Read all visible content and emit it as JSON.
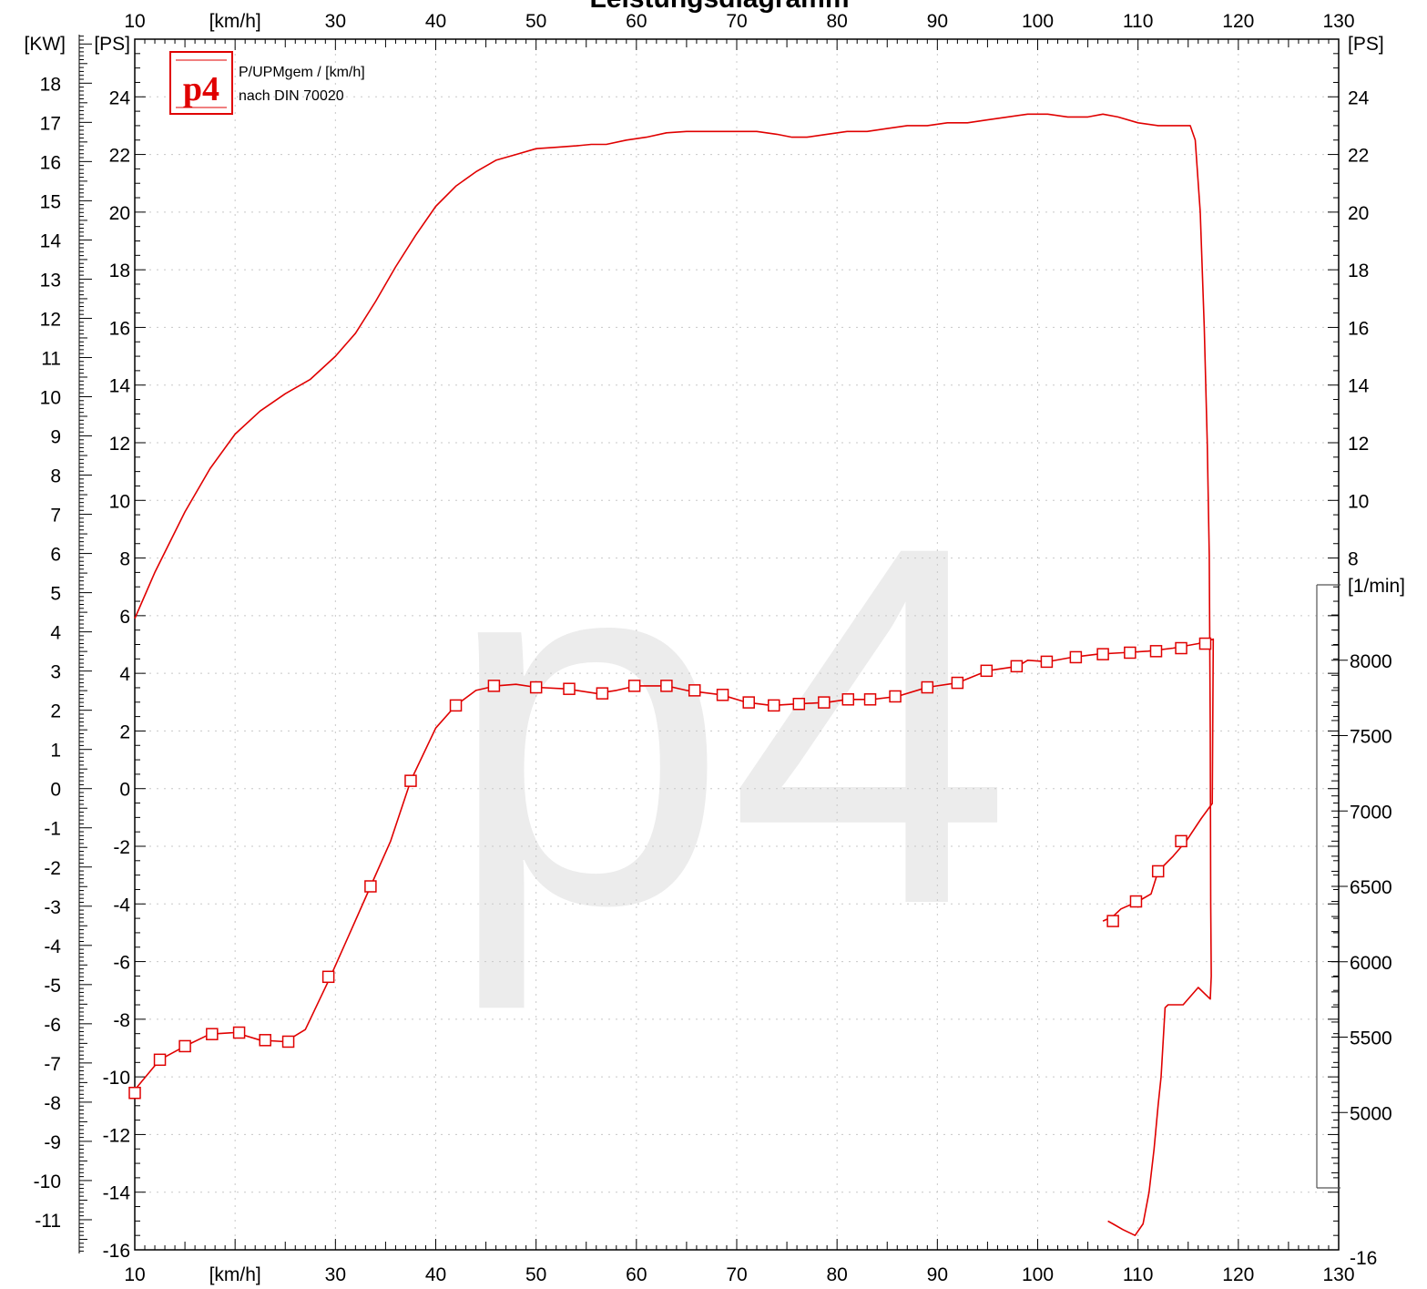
{
  "title": "Leistungsdiagramm",
  "watermark": "p4",
  "legend": {
    "logo": "p4",
    "line1": "P/UPMgem / [km/h]",
    "line2": "nach DIN 70020"
  },
  "colors": {
    "series": "#e00000",
    "grid": "#c8c8c8",
    "axis": "#000000",
    "watermark": "#ececec"
  },
  "chart_data": {
    "type": "line",
    "title": "Leistungsdiagramm",
    "x_axis": {
      "label": "[km/h]",
      "range": [
        10,
        130
      ],
      "ticks_top": [
        "10",
        "[km/h]",
        "30",
        "40",
        "50",
        "60",
        "70",
        "80",
        "90",
        "100",
        "110",
        "120",
        "130"
      ],
      "ticks_bottom": [
        "10",
        "[km/h]",
        "30",
        "40",
        "50",
        "60",
        "70",
        "80",
        "90",
        "100",
        "110",
        "120",
        "130"
      ]
    },
    "y_axis_ps_left": {
      "label": "[PS]",
      "range": [
        -16,
        26
      ],
      "ticks": [
        "-16",
        "-14",
        "-12",
        "-10",
        "-8",
        "-6",
        "-4",
        "-2",
        "0",
        "2",
        "4",
        "6",
        "8",
        "10",
        "12",
        "14",
        "16",
        "18",
        "20",
        "22",
        "24"
      ]
    },
    "y_axis_kw_left": {
      "label": "[KW]",
      "ticks": [
        "-11",
        "-10",
        "-9",
        "-8",
        "-7",
        "-6",
        "-5",
        "-4",
        "-3",
        "-2",
        "-1",
        "0",
        "1",
        "2",
        "3",
        "4",
        "5",
        "6",
        "7",
        "8",
        "9",
        "10",
        "11",
        "12",
        "13",
        "14",
        "15",
        "16",
        "17",
        "18"
      ]
    },
    "y_axis_ps_right": {
      "label": "[PS]",
      "ticks": [
        "-16",
        "8",
        "10",
        "12",
        "14",
        "16",
        "18",
        "20",
        "22",
        "24"
      ]
    },
    "y_axis_rpm_right": {
      "label": "[1/min]",
      "range": [
        4500,
        8500
      ],
      "ticks": [
        "5000",
        "5500",
        "6000",
        "6500",
        "7000",
        "7500",
        "8000"
      ]
    },
    "grid": true,
    "series": [
      {
        "axis": "ps",
        "marker": "none",
        "points": [
          [
            10,
            5.9
          ],
          [
            12,
            7.5
          ],
          [
            15,
            9.6
          ],
          [
            17.5,
            11.1
          ],
          [
            20,
            12.3
          ],
          [
            22.5,
            13.1
          ],
          [
            25,
            13.7
          ],
          [
            27.5,
            14.2
          ],
          [
            30,
            15
          ],
          [
            32,
            15.8
          ],
          [
            34,
            16.9
          ],
          [
            36,
            18.1
          ],
          [
            38,
            19.2
          ],
          [
            40,
            20.2
          ],
          [
            42,
            20.9
          ],
          [
            44,
            21.4
          ],
          [
            46,
            21.8
          ],
          [
            48,
            22
          ],
          [
            50,
            22.2
          ],
          [
            52,
            22.25
          ],
          [
            54,
            22.3
          ],
          [
            55.5,
            22.35
          ],
          [
            57,
            22.35
          ],
          [
            59,
            22.5
          ],
          [
            61,
            22.6
          ],
          [
            63,
            22.75
          ],
          [
            65,
            22.8
          ],
          [
            70,
            22.8
          ],
          [
            72,
            22.8
          ],
          [
            74,
            22.7
          ],
          [
            75.5,
            22.6
          ],
          [
            77,
            22.6
          ],
          [
            79,
            22.7
          ],
          [
            81,
            22.8
          ],
          [
            83,
            22.8
          ],
          [
            85,
            22.9
          ],
          [
            87,
            23
          ],
          [
            89,
            23
          ],
          [
            91,
            23.1
          ],
          [
            93,
            23.1
          ],
          [
            95,
            23.2
          ],
          [
            97,
            23.3
          ],
          [
            99,
            23.4
          ],
          [
            101,
            23.4
          ],
          [
            103,
            23.3
          ],
          [
            105,
            23.3
          ],
          [
            106.5,
            23.4
          ],
          [
            108,
            23.3
          ],
          [
            110,
            23.1
          ],
          [
            112,
            23
          ],
          [
            114,
            23
          ],
          [
            115.2,
            23
          ],
          [
            115.7,
            22.5
          ],
          [
            116.2,
            20
          ],
          [
            116.6,
            16
          ],
          [
            116.9,
            12
          ],
          [
            117.1,
            8.1
          ],
          [
            117.2,
            2
          ],
          [
            117.25,
            -4
          ],
          [
            117.3,
            -6.5
          ],
          [
            117.2,
            -7.3
          ],
          [
            116,
            -6.9
          ],
          [
            114.5,
            -7.5
          ],
          [
            113,
            -7.5
          ],
          [
            112.7,
            -7.6
          ],
          [
            112.3,
            -10
          ],
          [
            112,
            -11
          ],
          [
            111.6,
            -12.5
          ],
          [
            111.1,
            -14
          ],
          [
            110.5,
            -15.1
          ],
          [
            109.7,
            -15.5
          ],
          [
            108.5,
            -15.3
          ],
          [
            107.5,
            -15.1
          ],
          [
            107,
            -15
          ]
        ]
      },
      {
        "axis": "rpm",
        "marker": "square",
        "points": [
          [
            10,
            5150
          ],
          [
            12.5,
            5350
          ],
          [
            15,
            5440
          ],
          [
            17.5,
            5520
          ],
          [
            20,
            5530
          ],
          [
            22.5,
            5480
          ],
          [
            25,
            5470
          ],
          [
            27,
            5550
          ],
          [
            29.5,
            5900
          ],
          [
            31.5,
            6200
          ],
          [
            33.5,
            6500
          ],
          [
            35.5,
            6800
          ],
          [
            37.5,
            7200
          ],
          [
            40,
            7550
          ],
          [
            42,
            7700
          ],
          [
            44,
            7800
          ],
          [
            46,
            7830
          ],
          [
            48,
            7840
          ],
          [
            50,
            7820
          ],
          [
            53,
            7810
          ],
          [
            56,
            7780
          ],
          [
            58,
            7800
          ],
          [
            60,
            7830
          ],
          [
            63,
            7830
          ],
          [
            65,
            7800
          ],
          [
            68.5,
            7770
          ],
          [
            71,
            7720
          ],
          [
            73.5,
            7700
          ],
          [
            76,
            7710
          ],
          [
            79,
            7720
          ],
          [
            81,
            7740
          ],
          [
            83.5,
            7740
          ],
          [
            86,
            7760
          ],
          [
            89,
            7820
          ],
          [
            92,
            7850
          ],
          [
            95,
            7930
          ],
          [
            98,
            7960
          ],
          [
            99,
            8000
          ],
          [
            101,
            7990
          ],
          [
            103.5,
            8020
          ],
          [
            106,
            8040
          ],
          [
            108.5,
            8050
          ],
          [
            111,
            8060
          ],
          [
            113.5,
            8080
          ],
          [
            116,
            8110
          ],
          [
            117.5,
            8140
          ],
          [
            117.4,
            7050
          ],
          [
            116.3,
            6950
          ],
          [
            114.8,
            6800
          ],
          [
            113.5,
            6700
          ],
          [
            112,
            6600
          ],
          [
            111.3,
            6450
          ],
          [
            110,
            6400
          ],
          [
            108.3,
            6350
          ],
          [
            107.5,
            6300
          ],
          [
            106.5,
            6270
          ]
        ]
      }
    ],
    "marker_points_rpm": [
      [
        10,
        5130
      ],
      [
        12.5,
        5350
      ],
      [
        15,
        5440
      ],
      [
        17.7,
        5520
      ],
      [
        20.4,
        5530
      ],
      [
        23,
        5480
      ],
      [
        25.3,
        5470
      ],
      [
        29.3,
        5900
      ],
      [
        33.5,
        6500
      ],
      [
        37.5,
        7200
      ],
      [
        42,
        7700
      ],
      [
        45.8,
        7830
      ],
      [
        50,
        7820
      ],
      [
        53.3,
        7810
      ],
      [
        56.6,
        7780
      ],
      [
        59.8,
        7830
      ],
      [
        63,
        7830
      ],
      [
        65.8,
        7800
      ],
      [
        68.6,
        7770
      ],
      [
        71.2,
        7720
      ],
      [
        73.7,
        7700
      ],
      [
        76.2,
        7710
      ],
      [
        78.7,
        7720
      ],
      [
        81.1,
        7740
      ],
      [
        83.3,
        7740
      ],
      [
        85.8,
        7760
      ],
      [
        89,
        7820
      ],
      [
        92,
        7850
      ],
      [
        94.9,
        7930
      ],
      [
        97.9,
        7960
      ],
      [
        100.9,
        7990
      ],
      [
        103.8,
        8020
      ],
      [
        106.5,
        8040
      ],
      [
        109.2,
        8050
      ],
      [
        111.8,
        8060
      ],
      [
        114.3,
        8080
      ],
      [
        116.7,
        8110
      ],
      [
        114.3,
        6800
      ],
      [
        112,
        6600
      ],
      [
        109.8,
        6400
      ],
      [
        107.5,
        6270
      ]
    ]
  }
}
